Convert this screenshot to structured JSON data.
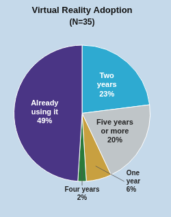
{
  "chart_data": {
    "type": "pie",
    "title": "Virtual Reality Adoption",
    "subtitle": "(N=35)",
    "categories": [
      "Two\nyears",
      "Five years\nor more",
      "One\nyear",
      "Four years",
      "Already\nusing it"
    ],
    "values": [
      23,
      20,
      6,
      2,
      49
    ],
    "value_labels": [
      "23%",
      "20%",
      "6%",
      "2%",
      "49%"
    ],
    "colors": [
      "#2eaad1",
      "#bfc5c8",
      "#c8a040",
      "#2a7a3a",
      "#4a3585"
    ],
    "data_labels": true
  }
}
